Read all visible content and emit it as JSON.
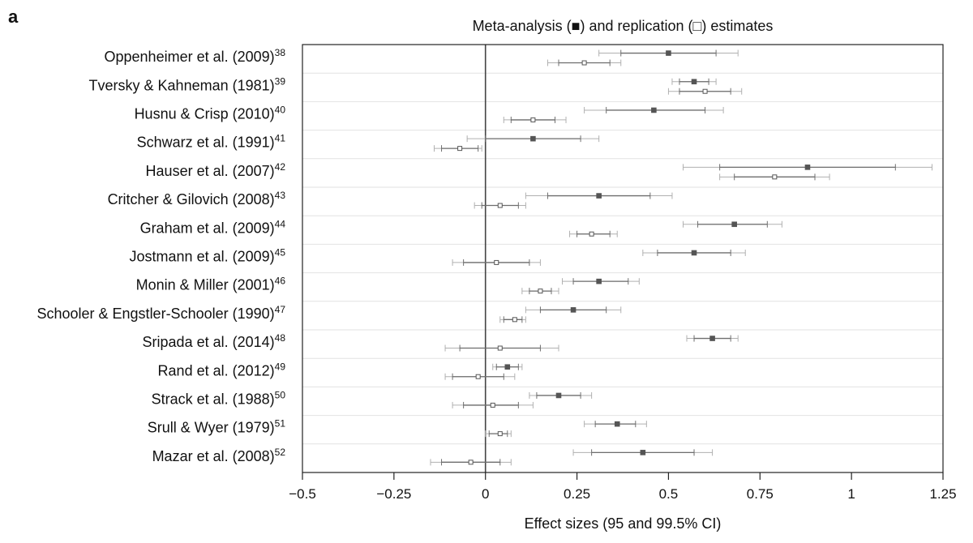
{
  "panel_label": "a",
  "chart_data": {
    "type": "forest",
    "title": "Meta-analysis (■) and replication (□) estimates",
    "xlabel": "Effect sizes (95 and 99.5% CI)",
    "ylabel": "",
    "xlim": [
      -0.5,
      1.25
    ],
    "xticks": [
      -0.5,
      -0.25,
      0,
      0.25,
      0.5,
      0.75,
      1,
      1.25
    ],
    "xtick_labels": [
      "−0.5",
      "−0.25",
      "0",
      "0.25",
      "0.5",
      "0.75",
      "1",
      "1.25"
    ],
    "reference_line": 0,
    "grid": "horizontal separators",
    "series": [
      {
        "name": "Meta-analysis",
        "marker": "filled-square"
      },
      {
        "name": "Replication",
        "marker": "open-square"
      }
    ],
    "studies": [
      {
        "label": "Oppenheimer et al. (2009)",
        "ref": "38",
        "meta": {
          "est": 0.5,
          "ci95": [
            0.37,
            0.63
          ],
          "ci995": [
            0.31,
            0.69
          ]
        },
        "rep": {
          "est": 0.27,
          "ci95": [
            0.2,
            0.34
          ],
          "ci995": [
            0.17,
            0.37
          ]
        }
      },
      {
        "label": "Tversky & Kahneman (1981)",
        "ref": "39",
        "meta": {
          "est": 0.57,
          "ci95": [
            0.53,
            0.61
          ],
          "ci995": [
            0.51,
            0.63
          ]
        },
        "rep": {
          "est": 0.6,
          "ci95": [
            0.53,
            0.67
          ],
          "ci995": [
            0.5,
            0.7
          ]
        }
      },
      {
        "label": "Husnu & Crisp (2010)",
        "ref": "40",
        "meta": {
          "est": 0.46,
          "ci95": [
            0.33,
            0.6
          ],
          "ci995": [
            0.27,
            0.65
          ]
        },
        "rep": {
          "est": 0.13,
          "ci95": [
            0.07,
            0.19
          ],
          "ci995": [
            0.05,
            0.22
          ]
        }
      },
      {
        "label": "Schwarz et al. (1991)",
        "ref": "41",
        "meta": {
          "est": 0.13,
          "ci95": [
            0.0,
            0.26
          ],
          "ci995": [
            -0.05,
            0.31
          ]
        },
        "rep": {
          "est": -0.07,
          "ci95": [
            -0.12,
            -0.02
          ],
          "ci995": [
            -0.14,
            -0.01
          ]
        }
      },
      {
        "label": "Hauser et al. (2007)",
        "ref": "42",
        "meta": {
          "est": 0.88,
          "ci95": [
            0.64,
            1.12
          ],
          "ci995": [
            0.54,
            1.22
          ]
        },
        "rep": {
          "est": 0.79,
          "ci95": [
            0.68,
            0.9
          ],
          "ci995": [
            0.64,
            0.94
          ]
        }
      },
      {
        "label": "Critcher & Gilovich (2008)",
        "ref": "43",
        "meta": {
          "est": 0.31,
          "ci95": [
            0.17,
            0.45
          ],
          "ci995": [
            0.11,
            0.51
          ]
        },
        "rep": {
          "est": 0.04,
          "ci95": [
            -0.01,
            0.09
          ],
          "ci995": [
            -0.03,
            0.11
          ]
        }
      },
      {
        "label": "Graham et al. (2009)",
        "ref": "44",
        "meta": {
          "est": 0.68,
          "ci95": [
            0.58,
            0.77
          ],
          "ci995": [
            0.54,
            0.81
          ]
        },
        "rep": {
          "est": 0.29,
          "ci95": [
            0.25,
            0.34
          ],
          "ci995": [
            0.23,
            0.36
          ]
        }
      },
      {
        "label": "Jostmann et al. (2009)",
        "ref": "45",
        "meta": {
          "est": 0.57,
          "ci95": [
            0.47,
            0.67
          ],
          "ci995": [
            0.43,
            0.71
          ]
        },
        "rep": {
          "est": 0.03,
          "ci95": [
            -0.06,
            0.12
          ],
          "ci995": [
            -0.09,
            0.15
          ]
        }
      },
      {
        "label": "Monin & Miller (2001)",
        "ref": "46",
        "meta": {
          "est": 0.31,
          "ci95": [
            0.24,
            0.39
          ],
          "ci995": [
            0.21,
            0.42
          ]
        },
        "rep": {
          "est": 0.15,
          "ci95": [
            0.12,
            0.18
          ],
          "ci995": [
            0.1,
            0.2
          ]
        }
      },
      {
        "label": "Schooler & Engstler-Schooler (1990)",
        "ref": "47",
        "meta": {
          "est": 0.24,
          "ci95": [
            0.15,
            0.33
          ],
          "ci995": [
            0.11,
            0.37
          ]
        },
        "rep": {
          "est": 0.08,
          "ci95": [
            0.05,
            0.1
          ],
          "ci995": [
            0.04,
            0.11
          ]
        }
      },
      {
        "label": "Sripada et al. (2014)",
        "ref": "48",
        "meta": {
          "est": 0.62,
          "ci95": [
            0.57,
            0.67
          ],
          "ci995": [
            0.55,
            0.69
          ]
        },
        "rep": {
          "est": 0.04,
          "ci95": [
            -0.07,
            0.15
          ],
          "ci995": [
            -0.11,
            0.2
          ]
        }
      },
      {
        "label": "Rand et al. (2012)",
        "ref": "49",
        "meta": {
          "est": 0.06,
          "ci95": [
            0.03,
            0.09
          ],
          "ci995": [
            0.02,
            0.1
          ]
        },
        "rep": {
          "est": -0.02,
          "ci95": [
            -0.09,
            0.05
          ],
          "ci995": [
            -0.11,
            0.08
          ]
        }
      },
      {
        "label": "Strack et al. (1988)",
        "ref": "50",
        "meta": {
          "est": 0.2,
          "ci95": [
            0.14,
            0.26
          ],
          "ci995": [
            0.12,
            0.29
          ]
        },
        "rep": {
          "est": 0.02,
          "ci95": [
            -0.06,
            0.09
          ],
          "ci995": [
            -0.09,
            0.13
          ]
        }
      },
      {
        "label": "Srull & Wyer (1979)",
        "ref": "51",
        "meta": {
          "est": 0.36,
          "ci95": [
            0.3,
            0.41
          ],
          "ci995": [
            0.27,
            0.44
          ]
        },
        "rep": {
          "est": 0.04,
          "ci95": [
            0.01,
            0.06
          ],
          "ci995": [
            0.0,
            0.07
          ]
        }
      },
      {
        "label": "Mazar et al. (2008)",
        "ref": "52",
        "meta": {
          "est": 0.43,
          "ci95": [
            0.29,
            0.57
          ],
          "ci995": [
            0.24,
            0.62
          ]
        },
        "rep": {
          "est": -0.04,
          "ci95": [
            -0.12,
            0.04
          ],
          "ci995": [
            -0.15,
            0.07
          ]
        }
      }
    ],
    "colors": {
      "frame": "#222222",
      "separator": "#e2e2e2",
      "ref_line": "#444444",
      "ci95": "#6e6e6e",
      "ci995": "#b0b0b0",
      "marker": "#555555"
    }
  }
}
